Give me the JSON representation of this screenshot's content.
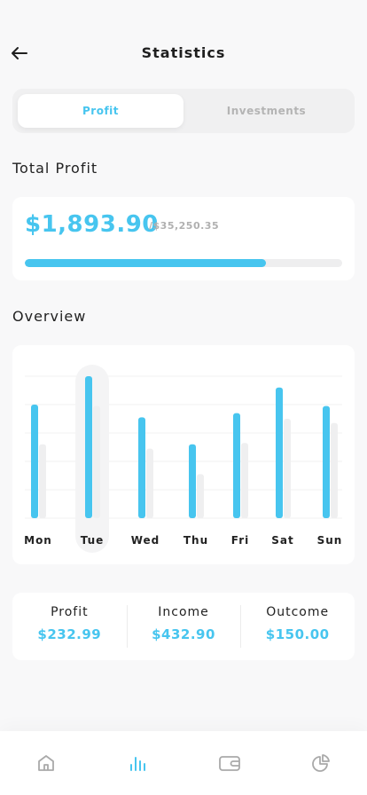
{
  "header": {
    "title": "Statistics",
    "back_icon": "arrow-left-icon"
  },
  "segments": [
    {
      "label": "Profit",
      "active": true
    },
    {
      "label": "Investments",
      "active": false
    }
  ],
  "total_profit": {
    "section_title": "Total Profit",
    "amount": "$1,893.90",
    "total": "/$35,250.35",
    "progress_fraction": 0.76
  },
  "overview": {
    "section_title": "Overview",
    "highlighted_day": "Tue"
  },
  "chart_data": {
    "type": "bar",
    "categories": [
      "Mon",
      "Tue",
      "Wed",
      "Thu",
      "Fri",
      "Sat",
      "Sun"
    ],
    "series": [
      {
        "values": [
          80,
          100,
          71,
          52,
          74,
          92,
          79
        ],
        "color": "#47c5ef"
      },
      {
        "values": [
          52,
          79,
          49,
          31,
          53,
          70,
          67
        ],
        "color": "#efeff0"
      }
    ],
    "ylim": [
      0,
      100
    ],
    "grid": true,
    "legend": "none"
  },
  "stats": [
    {
      "label": "Profit",
      "value": "$232.99"
    },
    {
      "label": "Income",
      "value": "$432.90"
    },
    {
      "label": "Outcome",
      "value": "$150.00"
    }
  ],
  "nav": [
    {
      "icon": "home-icon",
      "active": false
    },
    {
      "icon": "bar-chart-icon",
      "active": true
    },
    {
      "icon": "wallet-icon",
      "active": false
    },
    {
      "icon": "pie-chart-icon",
      "active": false
    }
  ],
  "colors": {
    "accent": "#47c5ef",
    "muted": "#b0b0b0",
    "background": "#f8f8f9"
  }
}
